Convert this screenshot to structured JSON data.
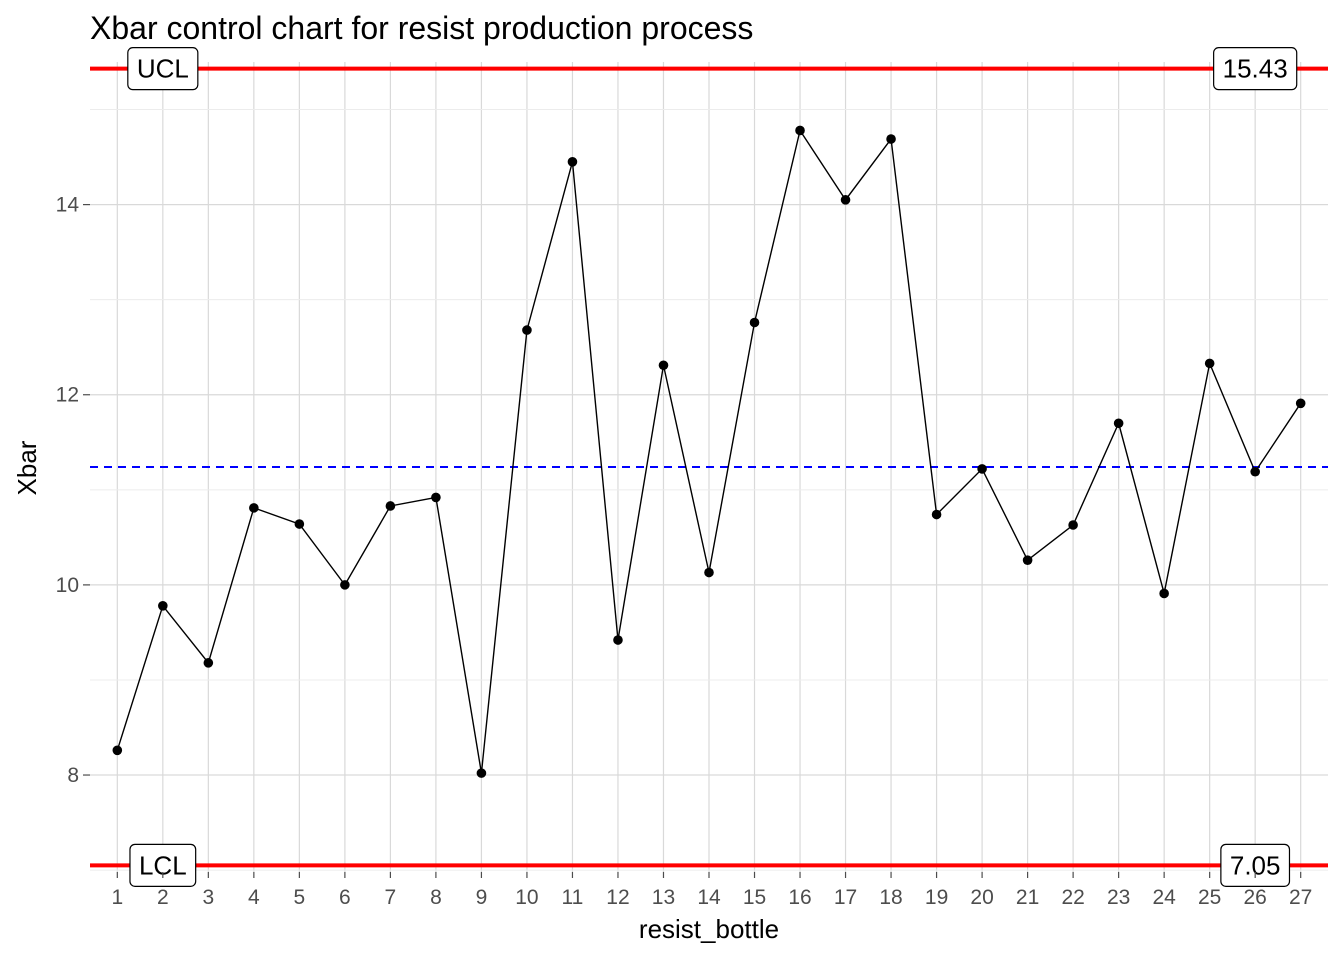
{
  "chart_data": {
    "type": "line",
    "title": "Xbar control chart for resist production process",
    "xlabel": "resist_bottle",
    "ylabel": "Xbar",
    "x": [
      1,
      2,
      3,
      4,
      5,
      6,
      7,
      8,
      9,
      10,
      11,
      12,
      13,
      14,
      15,
      16,
      17,
      18,
      19,
      20,
      21,
      22,
      23,
      24,
      25,
      26,
      27
    ],
    "series": [
      {
        "values": [
          8.26,
          9.78,
          9.18,
          10.81,
          10.64,
          10.0,
          10.83,
          10.92,
          8.02,
          12.68,
          14.45,
          9.42,
          12.31,
          10.13,
          12.76,
          14.78,
          14.05,
          14.69,
          10.74,
          11.22,
          10.26,
          10.63,
          11.7,
          9.91,
          12.33,
          11.19,
          11.91
        ],
        "color": "#000000"
      }
    ],
    "center_line": {
      "value": 11.24,
      "color": "#0000ff",
      "style": "dashed"
    },
    "limits": [
      {
        "name": "UCL",
        "value": 15.43,
        "value_label": "15.43",
        "color": "#ff0000"
      },
      {
        "name": "LCL",
        "value": 7.05,
        "value_label": "7.05",
        "color": "#ff0000"
      }
    ],
    "yticks": [
      8,
      10,
      12,
      14
    ],
    "ylim": [
      6.98,
      15.5
    ],
    "xlim": [
      0.4,
      27.6
    ],
    "grid": true,
    "legend": "none"
  }
}
